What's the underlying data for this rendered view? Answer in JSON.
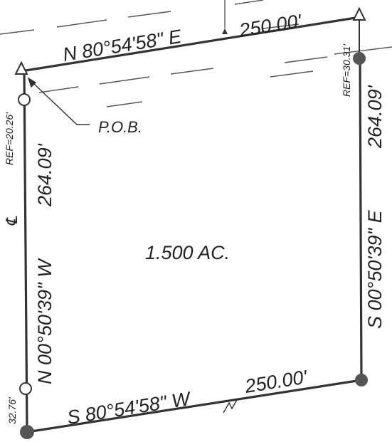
{
  "plat": {
    "bearings": {
      "north": "N 80°54'58\" E",
      "south": "S 80°54'58\" W",
      "east": "S 00°50'39\" E",
      "west": "N 00°50'39\" W"
    },
    "distances": {
      "north": "250.00'",
      "south": "250.00'",
      "east": "264.09'",
      "west": "264.09'"
    },
    "area": "1.500 AC.",
    "pob": "P.O.B.",
    "ref_west": "REF=20.26'",
    "ref_east": "REF=30.31'",
    "ref_sw": "32.76'",
    "centerline_mark": "℄",
    "colors": {
      "line": "#333333",
      "text": "#222222",
      "road": "#555555"
    }
  }
}
